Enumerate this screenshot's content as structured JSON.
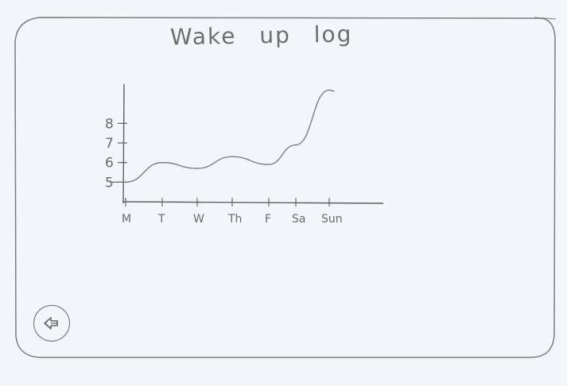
{
  "screen": {
    "title": "Wake up log"
  },
  "chart_data": {
    "type": "line",
    "title": "Wake up log",
    "categories": [
      "M",
      "T",
      "W",
      "Th",
      "F",
      "Sa",
      "Sun"
    ],
    "x_tick_labels": [
      "M",
      "T",
      "W",
      "Th",
      "F",
      "Sa",
      "Sun"
    ],
    "y_tick_labels": [
      "5",
      "6",
      "7",
      "8"
    ],
    "series": [
      {
        "values": [
          5.0,
          6.0,
          5.7,
          6.3,
          5.9,
          6.9,
          9.7
        ]
      }
    ],
    "xlabel": "",
    "ylabel": "",
    "ylim": [
      4.0,
      10.0
    ],
    "grid": false,
    "legend": "none"
  },
  "controls": {
    "back_icon": "back-arrow-icon"
  }
}
